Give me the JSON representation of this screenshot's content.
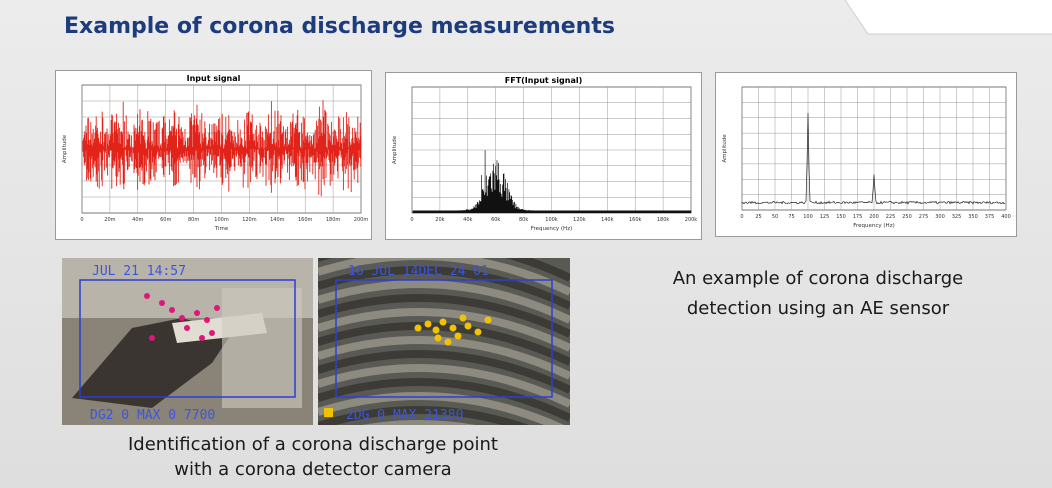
{
  "header": {
    "title": "Example of corona discharge measurements"
  },
  "figures": [
    {
      "title": "Input signal",
      "y_label": "Amplitude",
      "x_label": "Time",
      "x_ticks": [
        "0",
        "20m",
        "40m",
        "60m",
        "80m",
        "100m",
        "120m",
        "140m",
        "160m",
        "180m",
        "200m"
      ]
    },
    {
      "title": "FFT(Input signal)",
      "y_label": "Amplitude",
      "x_label": "Frequency (Hz)",
      "x_ticks": [
        "0",
        "20k",
        "40k",
        "60k",
        "80k",
        "100k",
        "120k",
        "140k",
        "160k",
        "180k",
        "200k"
      ]
    },
    {
      "y_label": "Amplitude",
      "x_label": "Frequency (Hz)",
      "x_ticks": [
        "0",
        "25",
        "50",
        "75",
        "100",
        "125",
        "150",
        "175",
        "200",
        "225",
        "250",
        "275",
        "300",
        "325",
        "350",
        "375",
        "400"
      ]
    }
  ],
  "photos": [
    {
      "overlay_top": "JUL 21 14:57",
      "overlay_bottom": "DG2 0 MAX 0 7700"
    },
    {
      "overlay_top": "16 JUL 14DEC 24 01",
      "overlay_bottom": "2DG 0 MAX 21380"
    }
  ],
  "captions": {
    "camera": [
      "Identification of a corona discharge point",
      "with a corona detector camera"
    ],
    "ae_sensor": [
      "An example of corona discharge",
      "detection using an AE sensor"
    ]
  }
}
